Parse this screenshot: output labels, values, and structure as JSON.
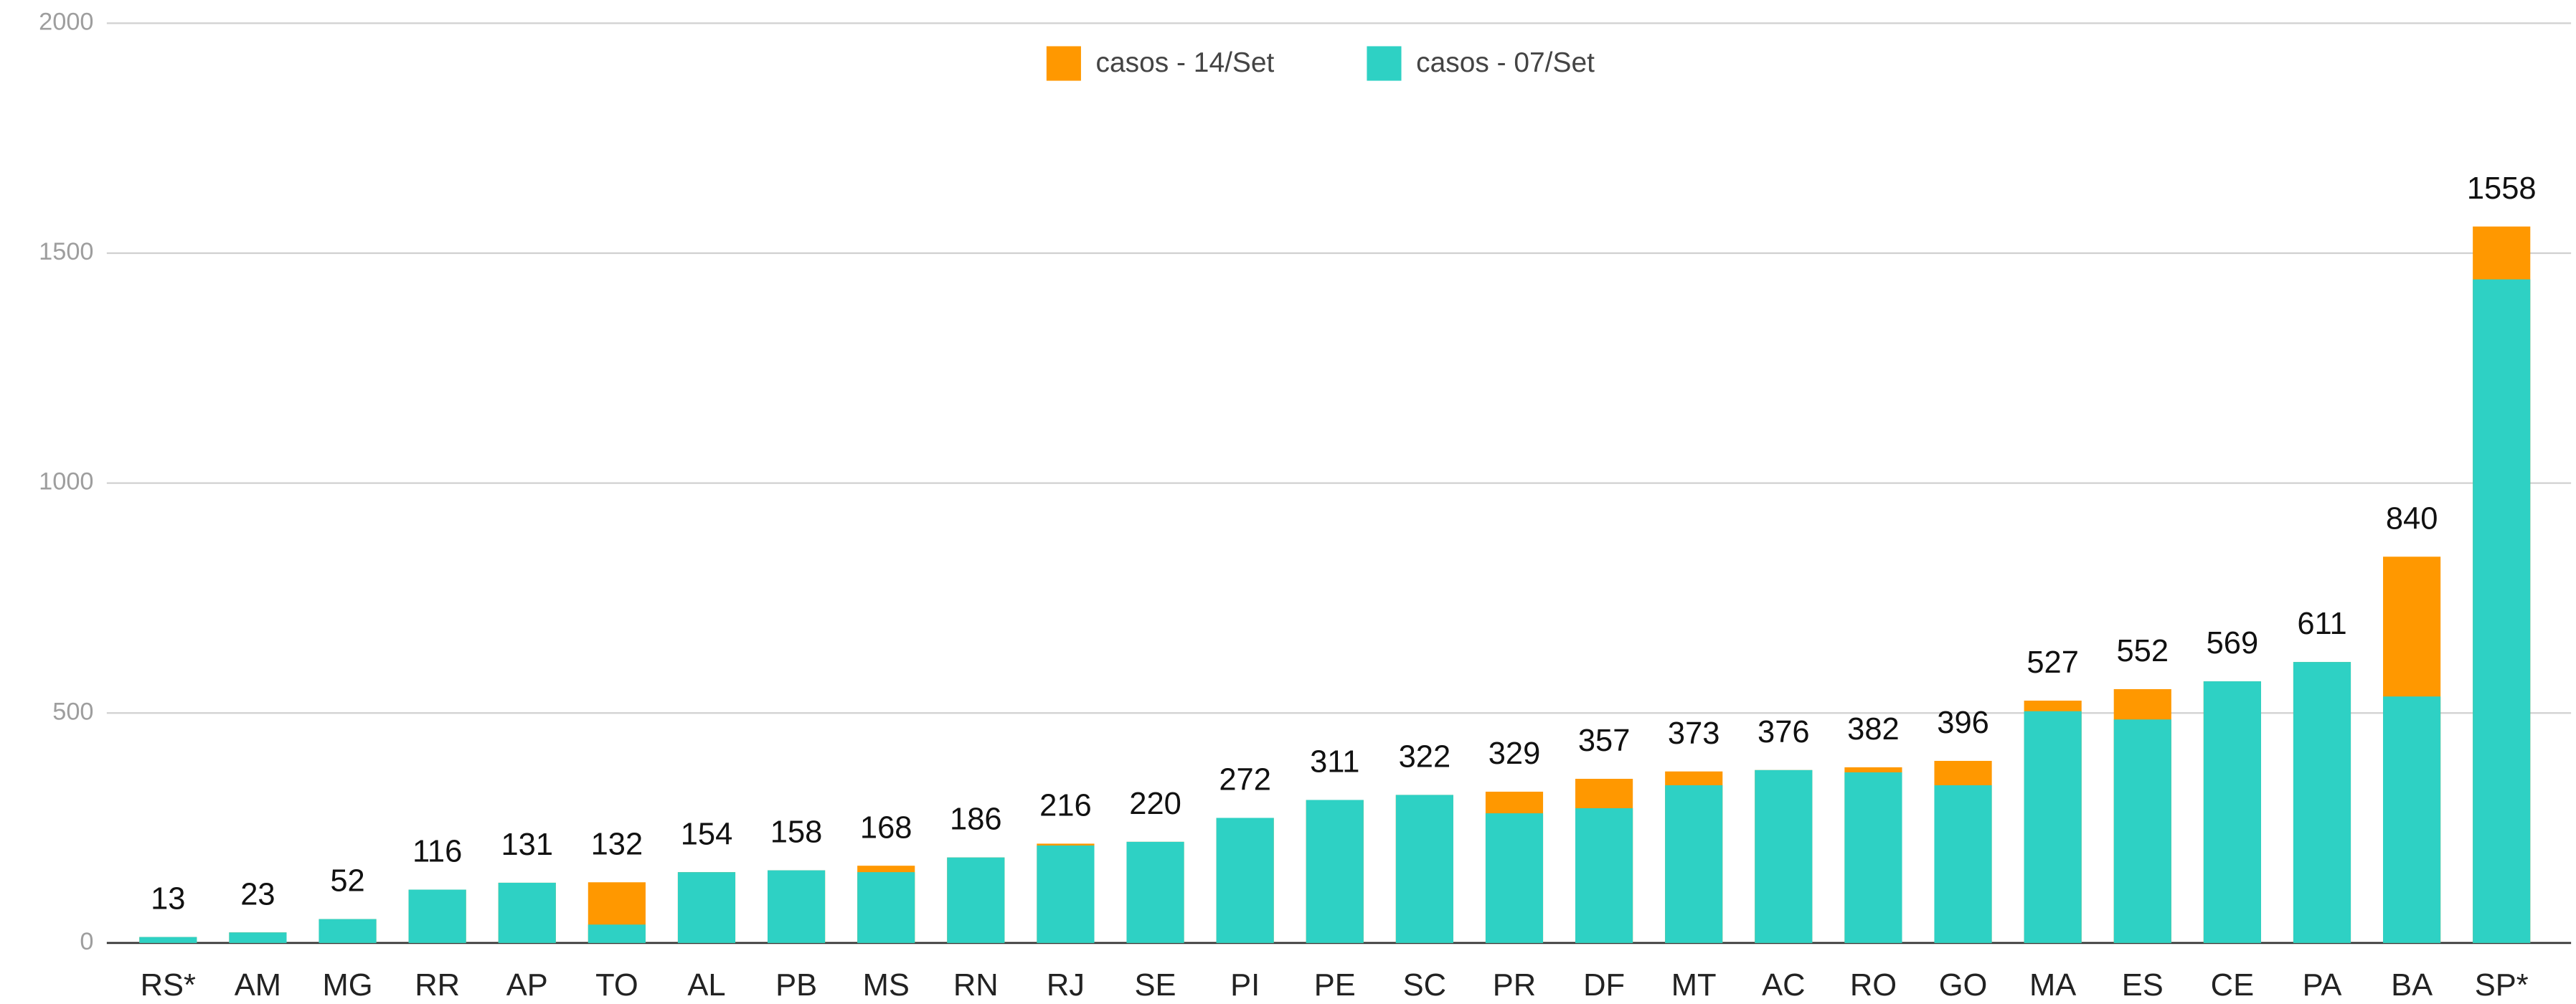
{
  "chart_data": {
    "type": "bar",
    "categories": [
      "RS*",
      "AM",
      "MG",
      "RR",
      "AP",
      "TO",
      "AL",
      "PB",
      "MS",
      "RN",
      "RJ",
      "SE",
      "PI",
      "PE",
      "SC",
      "PR",
      "DF",
      "MT",
      "AC",
      "RO",
      "GO",
      "MA",
      "ES",
      "CE",
      "PA",
      "BA",
      "SP*"
    ],
    "series": [
      {
        "name": "casos - 14/Set",
        "color": "#ff9800",
        "values": [
          13,
          23,
          52,
          116,
          131,
          132,
          154,
          158,
          168,
          186,
          216,
          220,
          272,
          311,
          322,
          329,
          357,
          373,
          376,
          382,
          396,
          527,
          552,
          569,
          611,
          840,
          1558
        ]
      },
      {
        "name": "casos - 07/Set",
        "color": "#2ed1c4",
        "values": [
          13,
          23,
          52,
          116,
          131,
          40,
          154,
          158,
          154,
          186,
          212,
          220,
          272,
          311,
          322,
          282,
          293,
          343,
          376,
          371,
          343,
          504,
          486,
          569,
          611,
          536,
          1443
        ]
      }
    ],
    "ylim": [
      0,
      2000
    ],
    "yticks": [
      0,
      500,
      1000,
      1500,
      2000
    ],
    "grid": true,
    "legend": "top"
  }
}
